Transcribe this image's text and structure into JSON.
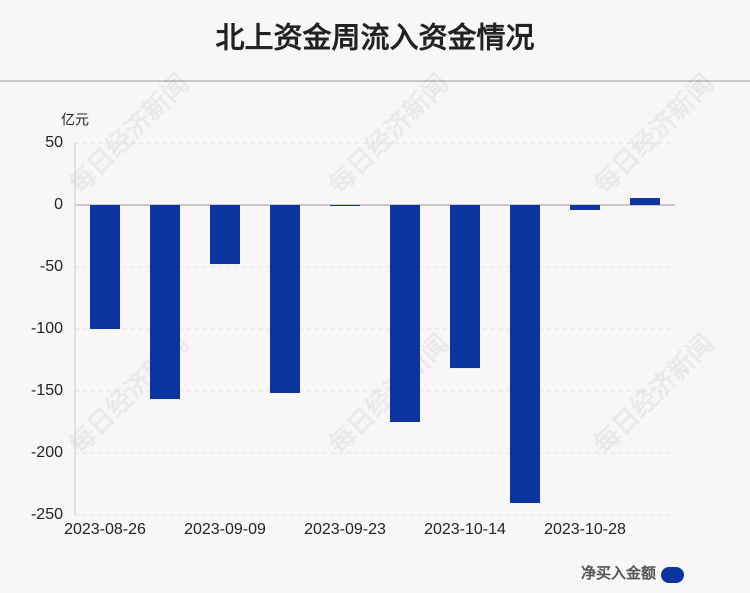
{
  "chart_data": {
    "type": "bar",
    "title": "北上资金周流入资金情况",
    "y_unit": "亿元",
    "watermark": "每日经济新闻",
    "categories": [
      "2023-08-26",
      null,
      "2023-09-09",
      null,
      "2023-09-23",
      null,
      "2023-10-14",
      null,
      "2023-10-28",
      null
    ],
    "series": [
      {
        "name": "净买入金额",
        "color": "#0b34a0",
        "values": [
          -100,
          -156.5,
          -47.6,
          -151.6,
          -0.4,
          -175,
          -131.5,
          -240.3,
          -4,
          5.6
        ]
      }
    ],
    "ylim": [
      -250,
      50
    ],
    "yticks": [
      -250,
      -200,
      -150,
      -100,
      -50,
      0,
      50
    ],
    "grid": true,
    "legend": "bottom-right"
  }
}
